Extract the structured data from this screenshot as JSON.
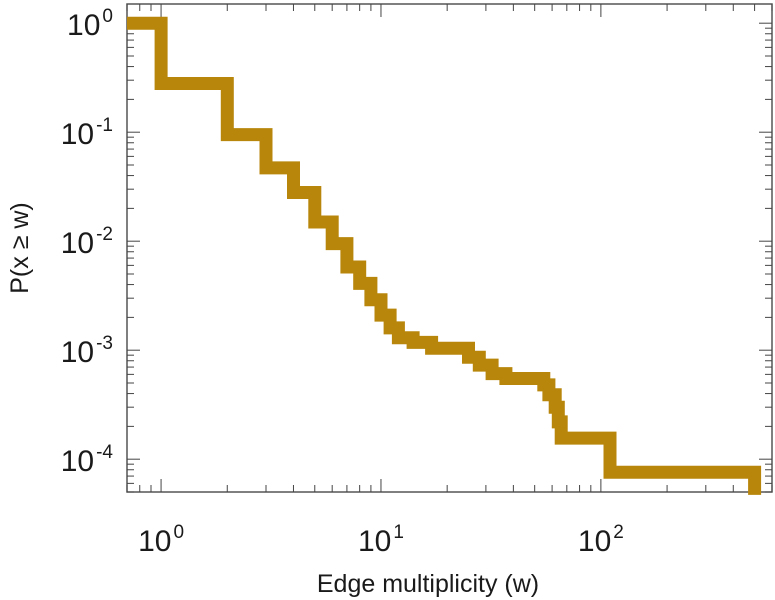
{
  "chart_data": {
    "type": "line",
    "step": true,
    "xlabel": "Edge multiplicity (w)",
    "ylabel": "P(x ≥ w)",
    "xscale": "log",
    "yscale": "log",
    "xlim": [
      0.7,
      600
    ],
    "ylim": [
      5e-05,
      1.5
    ],
    "grid": false,
    "x_ticks": [
      {
        "base": "10",
        "exp": "0",
        "value": 1
      },
      {
        "base": "10",
        "exp": "1",
        "value": 10
      },
      {
        "base": "10",
        "exp": "2",
        "value": 100
      }
    ],
    "y_ticks": [
      {
        "base": "10",
        "exp": "0",
        "value": 1
      },
      {
        "base": "10",
        "exp": "-1",
        "value": 0.1
      },
      {
        "base": "10",
        "exp": "-2",
        "value": 0.01
      },
      {
        "base": "10",
        "exp": "-3",
        "value": 0.001
      },
      {
        "base": "10",
        "exp": "-4",
        "value": 0.0001
      }
    ],
    "series": [
      {
        "color": "#b8860b",
        "x": [
          0.7,
          1,
          2,
          3,
          4,
          5,
          6,
          7,
          8,
          9,
          10,
          11,
          12,
          14,
          17,
          25,
          28,
          32,
          37,
          55,
          58,
          62,
          64,
          66,
          68,
          110,
          120,
          500
        ],
        "y": [
          1.0,
          0.28,
          0.095,
          0.047,
          0.028,
          0.015,
          0.0095,
          0.0058,
          0.0041,
          0.0029,
          0.0021,
          0.0016,
          0.0013,
          0.00118,
          0.00104,
          0.00086,
          0.00073,
          0.00061,
          0.00055,
          0.00048,
          0.00039,
          0.0003,
          0.00022,
          0.000156,
          0.000156,
          7.6e-05,
          7.6e-05,
          4.7e-05
        ]
      }
    ]
  }
}
